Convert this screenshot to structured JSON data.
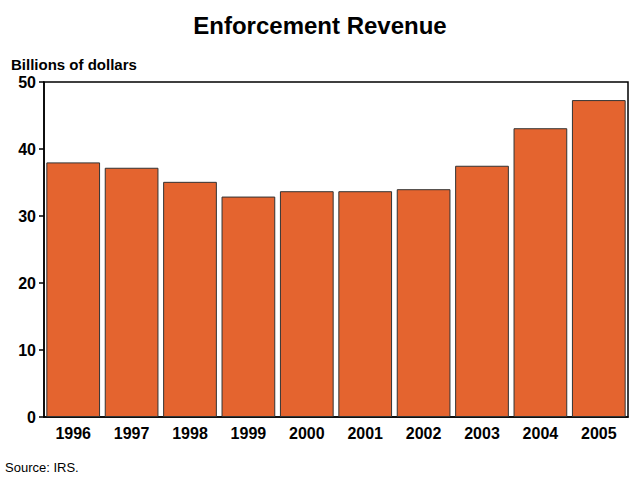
{
  "chart_data": {
    "type": "bar",
    "title": "Enforcement Revenue",
    "y_label": "Billions of dollars",
    "source": "Source: IRS.",
    "categories": [
      "1996",
      "1997",
      "1998",
      "1999",
      "2000",
      "2001",
      "2002",
      "2003",
      "2004",
      "2005"
    ],
    "values": [
      38.0,
      37.2,
      35.1,
      32.9,
      33.7,
      33.7,
      34.0,
      37.5,
      43.1,
      47.3
    ],
    "color": "#e4642f",
    "ylim": [
      0,
      50
    ],
    "yticks": [
      0,
      10,
      20,
      30,
      40,
      50
    ],
    "grid": false
  }
}
